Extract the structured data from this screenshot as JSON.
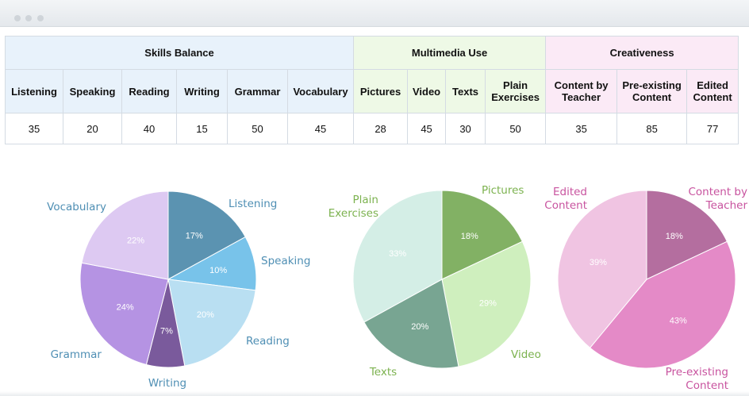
{
  "table": {
    "groups": [
      {
        "label": "Skills Balance",
        "span": 6,
        "cls": "g-skills"
      },
      {
        "label": "Multimedia Use",
        "span": 4,
        "cls": "g-media"
      },
      {
        "label": "Creativeness",
        "span": 3,
        "cls": "g-creat"
      }
    ],
    "columns": [
      {
        "label": [
          "Listening"
        ],
        "group": 0
      },
      {
        "label": [
          "Speaking"
        ],
        "group": 0
      },
      {
        "label": [
          "Reading"
        ],
        "group": 0
      },
      {
        "label": [
          "Writing"
        ],
        "group": 0
      },
      {
        "label": [
          "Grammar"
        ],
        "group": 0
      },
      {
        "label": [
          "Vocabulary"
        ],
        "group": 0
      },
      {
        "label": [
          "Pictures"
        ],
        "group": 1
      },
      {
        "label": [
          "Video"
        ],
        "group": 1
      },
      {
        "label": [
          "Texts"
        ],
        "group": 1
      },
      {
        "label": [
          "Plain",
          "Exercises"
        ],
        "group": 1
      },
      {
        "label": [
          "Content by",
          "Teacher"
        ],
        "group": 2
      },
      {
        "label": [
          "Pre-existing",
          "Content"
        ],
        "group": 2
      },
      {
        "label": [
          "Edited",
          "Content"
        ],
        "group": 2
      }
    ],
    "values": [
      "35",
      "20",
      "40",
      "15",
      "50",
      "45",
      "28",
      "45",
      "30",
      "50",
      "35",
      "85",
      "77"
    ]
  },
  "chart_data": [
    {
      "type": "pie",
      "title": "",
      "slices": [
        {
          "label": "Listening",
          "pct_label": "17%",
          "value": 17,
          "color": "#5b93b1",
          "label_color": "#4f8fb4"
        },
        {
          "label": "Speaking",
          "pct_label": "10%",
          "value": 10,
          "color": "#78c3ea",
          "label_color": "#4f8fb4"
        },
        {
          "label": "Reading",
          "pct_label": "20%",
          "value": 20,
          "color": "#b9dff2",
          "label_color": "#4f8fb4"
        },
        {
          "label": "Writing",
          "pct_label": "7%",
          "value": 7,
          "color": "#7a5a9c",
          "label_color": "#4f8fb4"
        },
        {
          "label": "Grammar",
          "pct_label": "24%",
          "value": 24,
          "color": "#b593e3",
          "label_color": "#4f8fb4"
        },
        {
          "label": "Vocabulary",
          "pct_label": "22%",
          "value": 22,
          "color": "#ddc9f2",
          "label_color": "#4f8fb4"
        }
      ]
    },
    {
      "type": "pie",
      "title": "",
      "slices": [
        {
          "label": "Pictures",
          "pct_label": "18%",
          "value": 18,
          "color": "#82b164",
          "label_color": "#7cb24f"
        },
        {
          "label": "Video",
          "pct_label": "29%",
          "value": 29,
          "color": "#cfefbe",
          "label_color": "#7cb24f"
        },
        {
          "label": "Texts",
          "pct_label": "20%",
          "value": 20,
          "color": "#78a592",
          "label_color": "#7cb24f"
        },
        {
          "label": "Plain Exercises",
          "pct_label": "33%",
          "value": 33,
          "color": "#d4eee6",
          "label_color": "#7cb24f"
        }
      ]
    },
    {
      "type": "pie",
      "title": "",
      "slices": [
        {
          "label": "Content by Teacher",
          "pct_label": "18%",
          "value": 18,
          "color": "#b46e9f",
          "label_color": "#c8539f"
        },
        {
          "label": "Pre-existing Content",
          "pct_label": "43%",
          "value": 43,
          "color": "#e48ac7",
          "label_color": "#c8539f"
        },
        {
          "label": "Edited Content",
          "pct_label": "39%",
          "value": 39,
          "color": "#f0c4e2",
          "label_color": "#c8539f"
        }
      ]
    }
  ]
}
